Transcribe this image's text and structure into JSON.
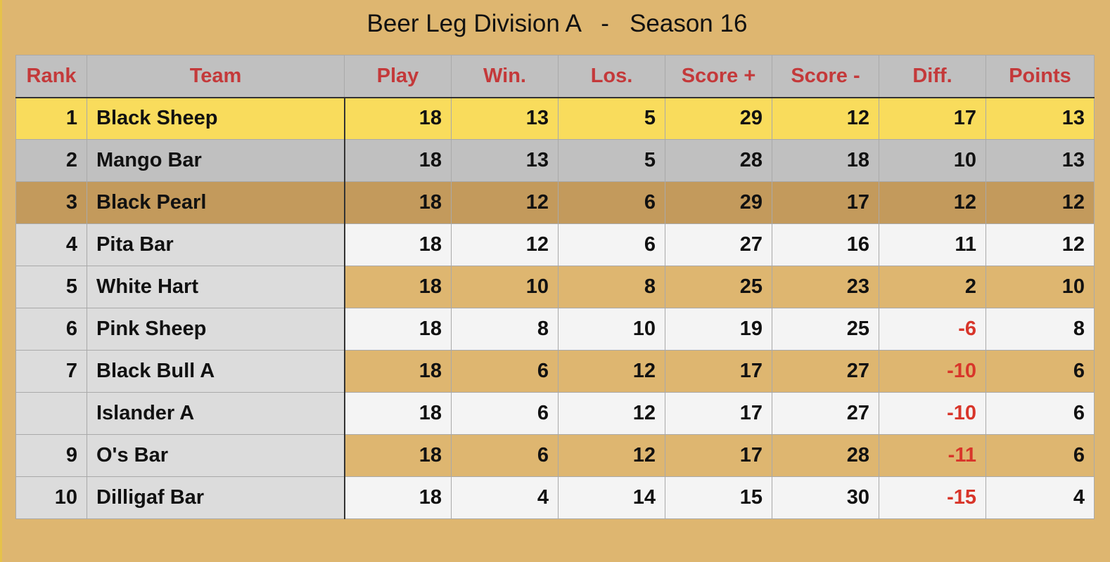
{
  "title": "Beer Leg Division A   -   Season 16",
  "columns": [
    "Rank",
    "Team",
    "Play",
    "Win.",
    "Los.",
    "Score +",
    "Score -",
    "Diff.",
    "Points"
  ],
  "colors": {
    "background": "#deb670",
    "header": "#c0c0c0",
    "header_text": "#c4393a",
    "first_place": "#f9dc5c",
    "second_place": "#c0c0c0",
    "third_place": "#c39a5c",
    "negative_diff": "#d8352a"
  },
  "rows": [
    {
      "rank": "1",
      "team": "Black Sheep",
      "play": "18",
      "win": "13",
      "los": "5",
      "score_plus": "29",
      "score_minus": "12",
      "diff": "17",
      "points": "13"
    },
    {
      "rank": "2",
      "team": "Mango Bar",
      "play": "18",
      "win": "13",
      "los": "5",
      "score_plus": "28",
      "score_minus": "18",
      "diff": "10",
      "points": "13"
    },
    {
      "rank": "3",
      "team": "Black Pearl",
      "play": "18",
      "win": "12",
      "los": "6",
      "score_plus": "29",
      "score_minus": "17",
      "diff": "12",
      "points": "12"
    },
    {
      "rank": "4",
      "team": "Pita Bar",
      "play": "18",
      "win": "12",
      "los": "6",
      "score_plus": "27",
      "score_minus": "16",
      "diff": "11",
      "points": "12"
    },
    {
      "rank": "5",
      "team": "White Hart",
      "play": "18",
      "win": "10",
      "los": "8",
      "score_plus": "25",
      "score_minus": "23",
      "diff": "2",
      "points": "10"
    },
    {
      "rank": "6",
      "team": "Pink Sheep",
      "play": "18",
      "win": "8",
      "los": "10",
      "score_plus": "19",
      "score_minus": "25",
      "diff": "-6",
      "points": "8"
    },
    {
      "rank": "7",
      "team": "Black Bull A",
      "play": "18",
      "win": "6",
      "los": "12",
      "score_plus": "17",
      "score_minus": "27",
      "diff": "-10",
      "points": "6"
    },
    {
      "rank": "",
      "team": "Islander A",
      "play": "18",
      "win": "6",
      "los": "12",
      "score_plus": "17",
      "score_minus": "27",
      "diff": "-10",
      "points": "6"
    },
    {
      "rank": "9",
      "team": "O's Bar",
      "play": "18",
      "win": "6",
      "los": "12",
      "score_plus": "17",
      "score_minus": "28",
      "diff": "-11",
      "points": "6"
    },
    {
      "rank": "10",
      "team": "Dilligaf Bar",
      "play": "18",
      "win": "4",
      "los": "14",
      "score_plus": "15",
      "score_minus": "30",
      "diff": "-15",
      "points": "4"
    }
  ]
}
